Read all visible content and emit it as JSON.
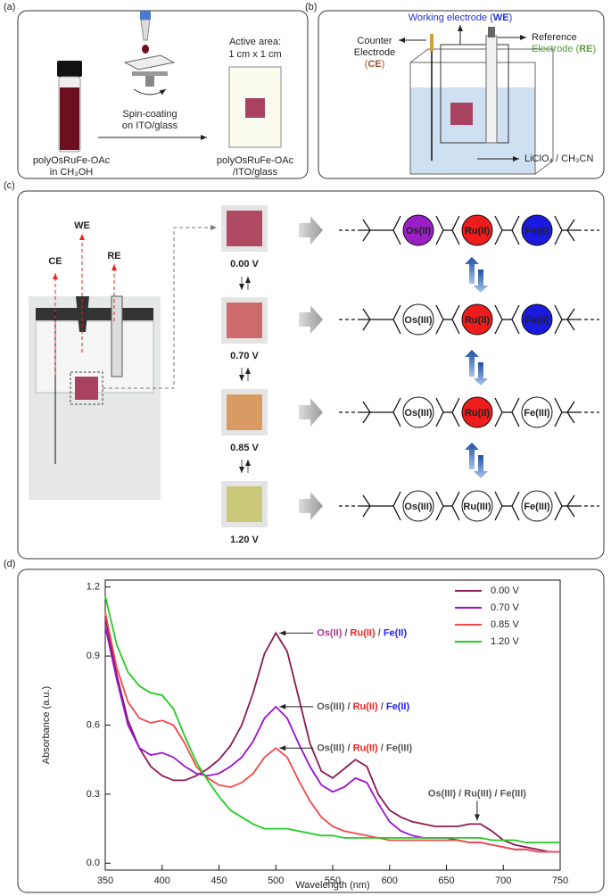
{
  "panel_a": {
    "label": "(a)",
    "vial_caption": [
      "polyOsRuFe-OAc",
      "in CH₃OH"
    ],
    "process": [
      "Spin-coating",
      "on ITO/glass"
    ],
    "active_area": [
      "Active area:",
      "1 cm x 1 cm"
    ],
    "film_caption": [
      "polyOsRuFe-OAc",
      "/ITO/glass"
    ]
  },
  "panel_b": {
    "label": "(b)",
    "working": [
      "Working electrode (",
      "WE",
      ")"
    ],
    "counter": [
      "Counter",
      "Electrode",
      "(",
      "CE",
      ")"
    ],
    "reference": [
      "Reference",
      "Electrode (",
      "RE",
      ")"
    ],
    "electrolyte": "LiClO₄ / CH₃CN"
  },
  "panel_c": {
    "label": "(c)",
    "electrodes": [
      "CE",
      "WE",
      "RE"
    ],
    "states": [
      {
        "voltage": "0.00 V",
        "units": [
          {
            "label": "Os(II)",
            "fill": "#9b1fc7"
          },
          {
            "label": "Ru(II)",
            "fill": "#ee1c1c"
          },
          {
            "label": "Fe(II)",
            "fill": "#1a1adf"
          }
        ]
      },
      {
        "voltage": "0.70 V",
        "units": [
          {
            "label": "Os(III)",
            "fill": "#ffffff"
          },
          {
            "label": "Ru(II)",
            "fill": "#ee1c1c"
          },
          {
            "label": "Fe(II)",
            "fill": "#1a1adf"
          }
        ]
      },
      {
        "voltage": "0.85 V",
        "units": [
          {
            "label": "Os(III)",
            "fill": "#ffffff"
          },
          {
            "label": "Ru(II)",
            "fill": "#ee1c1c"
          },
          {
            "label": "Fe(III)",
            "fill": "#ffffff"
          }
        ]
      },
      {
        "voltage": "1.20 V",
        "units": [
          {
            "label": "Os(III)",
            "fill": "#ffffff"
          },
          {
            "label": "Ru(III)",
            "fill": "#ffffff"
          },
          {
            "label": "Fe(III)",
            "fill": "#ffffff"
          }
        ]
      }
    ]
  },
  "panel_d": {
    "label": "(d)"
  },
  "chart_data": {
    "type": "line",
    "x_label": "Wavelength (nm)",
    "y_label": "Absorbance (a.u.)",
    "x": [
      350,
      360,
      370,
      380,
      390,
      400,
      410,
      420,
      430,
      440,
      450,
      460,
      470,
      480,
      490,
      500,
      510,
      520,
      530,
      540,
      550,
      560,
      570,
      580,
      590,
      600,
      610,
      620,
      630,
      640,
      650,
      660,
      670,
      680,
      690,
      700,
      710,
      720,
      730,
      740,
      750
    ],
    "series": [
      {
        "name": "0.00 V",
        "color": "#8b1a52",
        "values": [
          1.07,
          0.82,
          0.62,
          0.5,
          0.42,
          0.38,
          0.36,
          0.36,
          0.38,
          0.41,
          0.45,
          0.51,
          0.6,
          0.74,
          0.91,
          1.0,
          0.92,
          0.72,
          0.52,
          0.4,
          0.37,
          0.41,
          0.45,
          0.42,
          0.3,
          0.23,
          0.2,
          0.18,
          0.17,
          0.16,
          0.16,
          0.16,
          0.17,
          0.17,
          0.14,
          0.1,
          0.08,
          0.07,
          0.06,
          0.05,
          0.05
        ]
      },
      {
        "name": "0.70 V",
        "color": "#9a10d0",
        "values": [
          1.03,
          0.8,
          0.6,
          0.5,
          0.47,
          0.48,
          0.46,
          0.42,
          0.39,
          0.38,
          0.39,
          0.42,
          0.46,
          0.53,
          0.63,
          0.68,
          0.63,
          0.52,
          0.42,
          0.34,
          0.31,
          0.33,
          0.37,
          0.35,
          0.26,
          0.18,
          0.14,
          0.12,
          0.11,
          0.11,
          0.11,
          0.1,
          0.09,
          0.09,
          0.08,
          0.07,
          0.06,
          0.06,
          0.05,
          0.05,
          0.05
        ]
      },
      {
        "name": "0.85 V",
        "color": "#f24a4a",
        "values": [
          1.09,
          0.85,
          0.7,
          0.63,
          0.61,
          0.62,
          0.6,
          0.52,
          0.42,
          0.37,
          0.34,
          0.33,
          0.35,
          0.39,
          0.46,
          0.5,
          0.46,
          0.36,
          0.27,
          0.2,
          0.16,
          0.14,
          0.13,
          0.12,
          0.11,
          0.1,
          0.1,
          0.1,
          0.1,
          0.1,
          0.1,
          0.1,
          0.09,
          0.09,
          0.08,
          0.07,
          0.06,
          0.06,
          0.05,
          0.05,
          0.05
        ]
      },
      {
        "name": "1.20 V",
        "color": "#22cc22",
        "values": [
          1.16,
          0.95,
          0.83,
          0.77,
          0.74,
          0.73,
          0.67,
          0.55,
          0.44,
          0.36,
          0.29,
          0.23,
          0.2,
          0.17,
          0.15,
          0.15,
          0.15,
          0.14,
          0.13,
          0.12,
          0.12,
          0.11,
          0.11,
          0.11,
          0.11,
          0.11,
          0.11,
          0.11,
          0.11,
          0.11,
          0.11,
          0.11,
          0.11,
          0.11,
          0.1,
          0.1,
          0.1,
          0.09,
          0.09,
          0.09,
          0.09
        ]
      }
    ],
    "xlim": [
      350,
      750
    ],
    "xticks": [
      350,
      400,
      450,
      500,
      550,
      600,
      650,
      700,
      750
    ],
    "ylim": [
      -0.03,
      1.23
    ],
    "yticks": [
      {
        "value": 0,
        "label": "0.0"
      },
      0.3,
      0.6,
      0.9,
      1.2
    ],
    "legend": "upper right",
    "annotations": [
      {
        "parts": [
          "Os(II)",
          " / ",
          "Ru(II)",
          " / ",
          "Fe(II)"
        ],
        "colors": [
          "#b0309a",
          "#555555",
          "#ee2222",
          "#555555",
          "#2222ee"
        ],
        "x": 500,
        "y": 1.0,
        "position": "right"
      },
      {
        "parts": [
          "Os(III)",
          " / ",
          "Ru(II)",
          " / ",
          "Fe(II)"
        ],
        "colors": [
          "#555555",
          "#555555",
          "#ee2222",
          "#555555",
          "#2222ee"
        ],
        "x": 500,
        "y": 0.68,
        "position": "right"
      },
      {
        "parts": [
          "Os(III)",
          " / ",
          "Ru(II)",
          " / ",
          "Fe(III)"
        ],
        "colors": [
          "#555555",
          "#555555",
          "#ee2222",
          "#555555",
          "#555555"
        ],
        "x": 500,
        "y": 0.5,
        "position": "right"
      },
      {
        "parts": [
          "Os(III)",
          " / ",
          "Ru(III)",
          " / ",
          "Fe(III)"
        ],
        "colors": [
          "#555555",
          "#555555",
          "#555555",
          "#555555",
          "#555555"
        ],
        "x": 677,
        "y": 0.17,
        "position": "above"
      }
    ]
  }
}
